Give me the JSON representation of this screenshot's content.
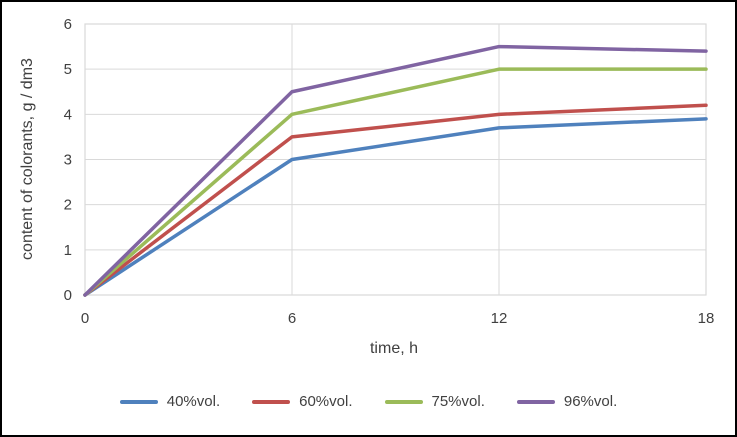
{
  "frame": {
    "background": "#ffffff",
    "border_color": "#000000"
  },
  "chart_data": {
    "type": "line",
    "x": [
      0,
      6,
      12,
      18
    ],
    "series": [
      {
        "name": "40%vol.",
        "color": "#4F81BD",
        "values": [
          0,
          3.0,
          3.7,
          3.9
        ]
      },
      {
        "name": "60%vol.",
        "color": "#C0504D",
        "values": [
          0,
          3.5,
          4.0,
          4.2
        ]
      },
      {
        "name": "75%vol.",
        "color": "#9BBB59",
        "values": [
          0,
          4.0,
          5.0,
          5.0
        ]
      },
      {
        "name": "96%vol.",
        "color": "#8064A2",
        "values": [
          0,
          4.5,
          5.5,
          5.4
        ]
      }
    ],
    "xlabel": "time, h",
    "ylabel": "content of colorants, g / dm3",
    "xlim": [
      0,
      18
    ],
    "ylim": [
      0,
      6
    ],
    "xticks": [
      0,
      6,
      12,
      18
    ],
    "yticks": [
      0,
      1,
      2,
      3,
      4,
      5,
      6
    ],
    "grid": true,
    "gridline_color": "#D9D9D9",
    "text_color": "#404040",
    "line_width": 3.5,
    "legend_position": "bottom"
  }
}
